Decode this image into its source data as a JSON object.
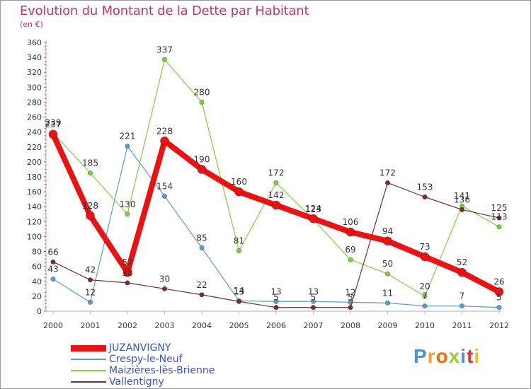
{
  "header": {
    "title": "Evolution du Montant de la Dette par Habitant",
    "unit": "(en €)"
  },
  "brand": {
    "text": "Proxiti",
    "colors": [
      "#4a90d9",
      "#f0a030",
      "#ff6600",
      "#9acd32",
      "#4a90d9",
      "#e03030",
      "#f0c020"
    ]
  },
  "chart_data": {
    "type": "line",
    "title": "Evolution du Montant de la Dette par Habitant",
    "ylabel": "(en €)",
    "xlabel": "",
    "ylim": [
      0,
      360
    ],
    "yticks": [
      0,
      20,
      40,
      60,
      80,
      100,
      120,
      140,
      160,
      180,
      200,
      220,
      240,
      260,
      280,
      300,
      320,
      340,
      360
    ],
    "grid": false,
    "legend_position": "bottom-left",
    "categories": [
      "2000",
      "2001",
      "2002",
      "2003",
      "2004",
      "2005",
      "2006",
      "2007",
      "2008",
      "2009",
      "2010",
      "2011",
      "2012"
    ],
    "series": [
      {
        "name": "Crespy-le-Neuf",
        "color": "#5b9bd5",
        "values": [
          43,
          12,
          221,
          154,
          85,
          14,
          13,
          13,
          12,
          11,
          7,
          7,
          5
        ]
      },
      {
        "name": "Maizières-lès-Brienne",
        "color": "#7fd13b",
        "values": [
          239,
          185,
          130,
          337,
          280,
          81,
          172,
          123,
          69,
          50,
          20,
          141,
          113
        ]
      },
      {
        "name": "Vallentigny",
        "color": "#7b2c2c",
        "values": [
          66,
          42,
          38,
          30,
          22,
          13,
          5,
          5,
          5,
          172,
          153,
          136,
          125
        ]
      },
      {
        "name": "JUZANVIGNY",
        "color": "#ee1111",
        "values": [
          237,
          128,
          52,
          228,
          190,
          160,
          142,
          124,
          106,
          94,
          73,
          52,
          26
        ]
      }
    ],
    "data_labels": [
      {
        "series": "Crespy-le-Neuf",
        "labels": [
          "43",
          "12",
          "221",
          "154",
          "85",
          "14",
          "13",
          "13",
          "12",
          "11",
          "7",
          "7",
          "5"
        ]
      },
      {
        "series": "Maizières-lès-Brienne",
        "labels": [
          "239",
          "185",
          "130",
          "337",
          "280",
          "81",
          "172",
          "123",
          "69",
          "50",
          "20",
          "141",
          "113"
        ]
      },
      {
        "series": "Vallentigny",
        "labels": [
          "66",
          "42",
          "38",
          "30",
          "22",
          "13",
          "5",
          "5",
          "5",
          "172",
          "153",
          "136",
          "125"
        ]
      },
      {
        "series": "JUZANVIGNY",
        "labels": [
          "237",
          "128",
          "52",
          "228",
          "190",
          "160",
          "142",
          "124",
          "106",
          "94",
          "73",
          "52",
          "26"
        ]
      }
    ]
  },
  "legend": {
    "items": [
      {
        "label": "JUZANVIGNY",
        "color": "#ee1111"
      },
      {
        "label": "Crespy-le-Neuf",
        "color": "#5b9bd5"
      },
      {
        "label": "Maizières-lès-Brienne",
        "color": "#7fd13b"
      },
      {
        "label": "Vallentigny",
        "color": "#7b2c2c"
      }
    ]
  }
}
